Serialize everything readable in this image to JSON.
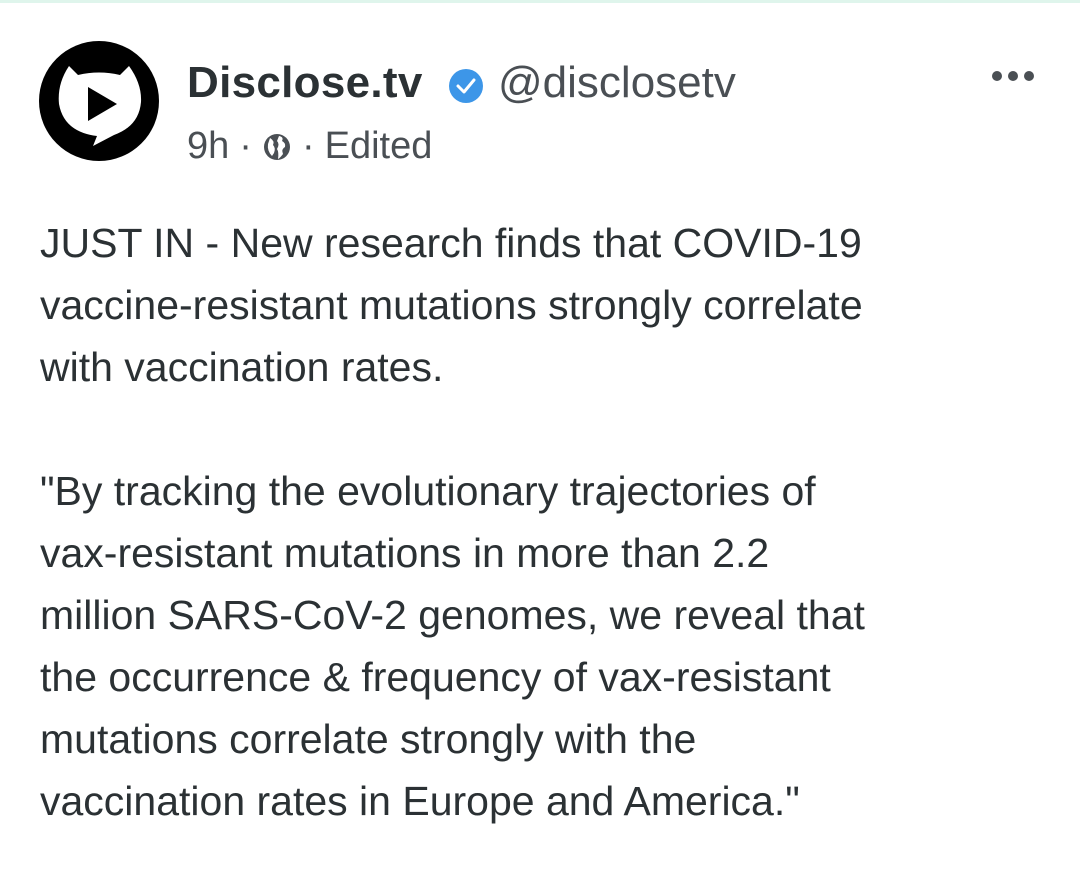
{
  "post": {
    "author_name": "Disclose.tv",
    "handle": "@disclosetv",
    "verified": true,
    "time": "9h",
    "separator": "·",
    "visibility_icon": "globe-icon",
    "edited": "Edited",
    "paragraphs": [
      "JUST IN - New research finds that COVID-19\nvaccine-resistant mutations strongly correlate\nwith vaccination rates.",
      "\"By tracking the evolutionary trajectories of\nvax-resistant mutations in more than 2.2\nmillion SARS-CoV-2 genomes, we reveal that\nthe occurrence & frequency of vax-resistant\nmutations correlate strongly with the\nvaccination rates in Europe and America.\""
    ]
  },
  "colors": {
    "text": "#2b3134",
    "secondary": "#4a4f54",
    "verified": "#3d96e8",
    "top_line": "#dff5ec"
  }
}
